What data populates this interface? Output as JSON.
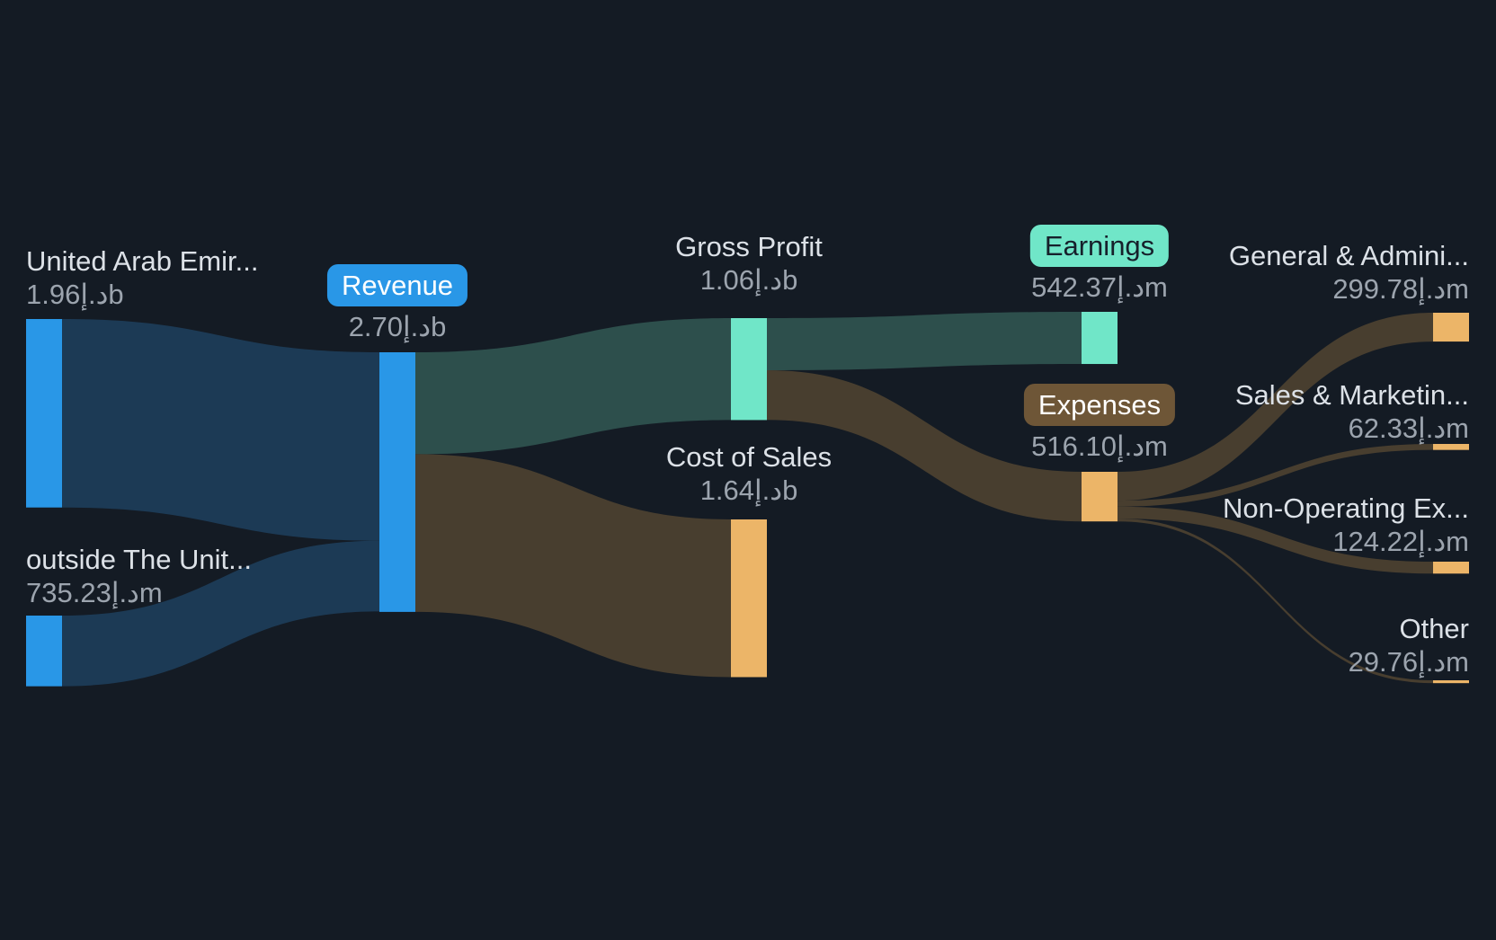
{
  "colors": {
    "background": "#141B24",
    "node_blue": "#2997E7",
    "node_teal": "#70E6C8",
    "node_orange": "#ECB568",
    "link_blue": "#1C3A55",
    "link_teal": "#2D4F4C",
    "link_brown": "#483E2F",
    "badge_brown": "#6E5637",
    "badge_text_light": "#FFFFFF",
    "badge_text_dark": "#16202B",
    "label_text": "#DCE1E7",
    "value_text": "#9CA4AE"
  },
  "chart_data": {
    "type": "sankey",
    "unit": "د.إ",
    "legend": "none",
    "grid": false,
    "nodes": [
      {
        "id": "uae",
        "label": "United Arab Emir...",
        "value": "1.96د.إb",
        "value_m": 1960,
        "color": "node_blue"
      },
      {
        "id": "outside",
        "label": "outside The Unit...",
        "value": "735.23د.إm",
        "value_m": 735.23,
        "color": "node_blue"
      },
      {
        "id": "revenue",
        "label": "Revenue",
        "value": "2.70د.إb",
        "value_m": 2700,
        "color": "node_blue",
        "badge": true
      },
      {
        "id": "gross_profit",
        "label": "Gross Profit",
        "value": "1.06د.إb",
        "value_m": 1060,
        "color": "node_teal"
      },
      {
        "id": "cost_of_sales",
        "label": "Cost of Sales",
        "value": "1.64د.إb",
        "value_m": 1640,
        "color": "node_orange"
      },
      {
        "id": "earnings",
        "label": "Earnings",
        "value": "542.37د.إm",
        "value_m": 542.37,
        "color": "node_teal",
        "badge": true
      },
      {
        "id": "expenses",
        "label": "Expenses",
        "value": "516.10د.إm",
        "value_m": 516.1,
        "color": "node_orange",
        "badge": true
      },
      {
        "id": "general_admin",
        "label": "General & Admini...",
        "value": "299.78د.إm",
        "value_m": 299.78,
        "color": "node_orange"
      },
      {
        "id": "sales_marketing",
        "label": "Sales & Marketin...",
        "value": "62.33د.إm",
        "value_m": 62.33,
        "color": "node_orange"
      },
      {
        "id": "non_operating",
        "label": "Non-Operating Ex...",
        "value": "124.22د.إm",
        "value_m": 124.22,
        "color": "node_orange"
      },
      {
        "id": "other",
        "label": "Other",
        "value": "29.76د.إm",
        "value_m": 29.76,
        "color": "node_orange"
      }
    ],
    "links": [
      {
        "source": "uae",
        "target": "revenue",
        "value_m": 1960,
        "color": "link_blue"
      },
      {
        "source": "outside",
        "target": "revenue",
        "value_m": 735.23,
        "color": "link_blue"
      },
      {
        "source": "revenue",
        "target": "gross_profit",
        "value_m": 1060,
        "color": "link_teal"
      },
      {
        "source": "revenue",
        "target": "cost_of_sales",
        "value_m": 1640,
        "color": "link_brown"
      },
      {
        "source": "gross_profit",
        "target": "earnings",
        "value_m": 542.37,
        "color": "link_teal"
      },
      {
        "source": "gross_profit",
        "target": "expenses",
        "value_m": 516.1,
        "color": "link_brown"
      },
      {
        "source": "expenses",
        "target": "general_admin",
        "value_m": 299.78,
        "color": "link_brown"
      },
      {
        "source": "expenses",
        "target": "sales_marketing",
        "value_m": 62.33,
        "color": "link_brown"
      },
      {
        "source": "expenses",
        "target": "non_operating",
        "value_m": 124.22,
        "color": "link_brown"
      },
      {
        "source": "expenses",
        "target": "other",
        "value_m": 29.76,
        "color": "link_brown"
      }
    ]
  }
}
